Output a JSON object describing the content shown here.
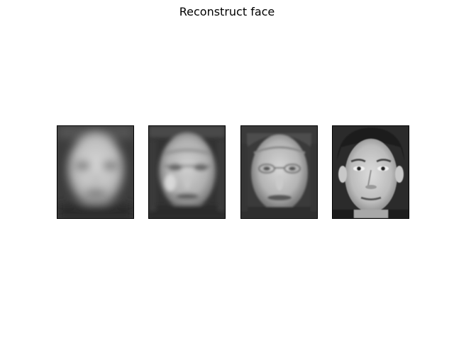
{
  "figure": {
    "title": "Reconstruct face"
  },
  "panels": [
    {
      "icon": "blurred-mean-face-image",
      "background": "#3c3c3c",
      "blur": 6
    },
    {
      "icon": "partial-reconstruction-face-image",
      "background": "#333333",
      "blur": 2.6
    },
    {
      "icon": "detailed-reconstruction-face-image",
      "background": "#3a3a3a",
      "blur": 1.4
    },
    {
      "icon": "original-face-image",
      "background": "#2b2b2b",
      "blur": 0.5
    }
  ]
}
